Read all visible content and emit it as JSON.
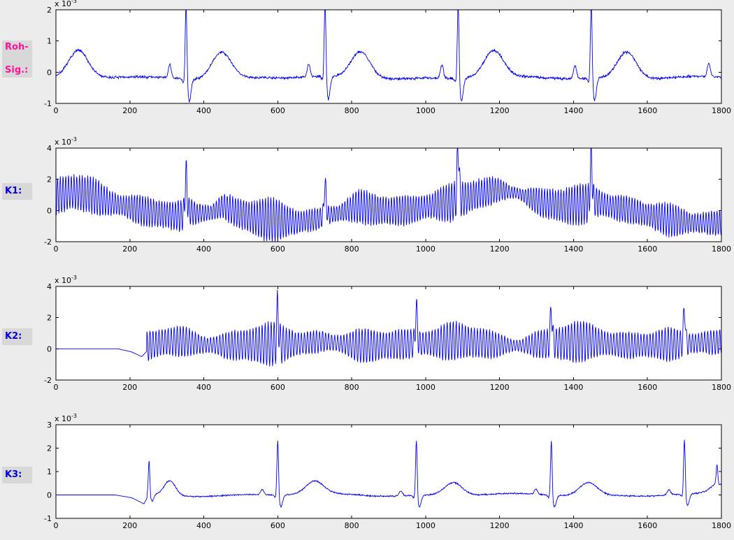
{
  "colors": {
    "figure_bg": "#ececec",
    "label_bg": "#d8d8d8",
    "axes_bg": "#ffffff",
    "axis_color": "#000000"
  },
  "chart_data": [
    {
      "id": "rohsig",
      "type": "line",
      "label_lines": [
        "Roh-",
        "Sig.:"
      ],
      "label_color": "#ff1493",
      "line_color": "#0000ee",
      "exp": {
        "base": "x 10",
        "power": "-3"
      },
      "xlim": [
        0,
        1800
      ],
      "ylim": [
        -1,
        2
      ],
      "xticks": [
        0,
        200,
        400,
        600,
        800,
        1000,
        1200,
        1400,
        1600,
        1800
      ],
      "yticks": [
        -1,
        0,
        1,
        2
      ],
      "signal": {
        "kind": "ecg",
        "seed": 7,
        "baseline": -0.18,
        "noise": 0.04,
        "wander": 0.03,
        "beats": [
          -35,
          352,
          728,
          1088,
          1448,
          1810
        ],
        "defaults": {
          "r": 2.45,
          "r_w": 2.3,
          "q": -0.12,
          "q_off": -7,
          "q_w": 3,
          "s": -0.72,
          "s_off": 9,
          "s_w": 4.5,
          "p": 0.42,
          "p_off": -44,
          "p_w": 4,
          "t": 0.85,
          "t_off": 96,
          "t_w": 26
        }
      }
    },
    {
      "id": "k1",
      "type": "line",
      "label_lines": [
        "K1:"
      ],
      "label_color": "#0000dd",
      "line_color": "#0000ee",
      "exp": {
        "base": "x 10",
        "power": "-3"
      },
      "xlim": [
        0,
        1800
      ],
      "ylim": [
        -2,
        4
      ],
      "xticks": [
        0,
        200,
        400,
        600,
        800,
        1000,
        1200,
        1400,
        1600,
        1800
      ],
      "yticks": [
        -2,
        0,
        2,
        4
      ],
      "signal": {
        "kind": "osc",
        "seed": 11,
        "noise": 0.09,
        "osc_amp": 0.9,
        "osc_period": 7.4,
        "spike_w": 2.6,
        "spikes": [
          [
            352,
            2.5
          ],
          [
            728,
            2.1
          ],
          [
            1088,
            3.5
          ],
          [
            1448,
            2.9
          ]
        ],
        "base_pts": [
          [
            0,
            0.9
          ],
          [
            40,
            1.2
          ],
          [
            90,
            1.05
          ],
          [
            140,
            0.55
          ],
          [
            190,
            0.25
          ],
          [
            240,
            -0.05
          ],
          [
            300,
            -0.3
          ],
          [
            340,
            -0.35
          ],
          [
            358,
            0.0
          ],
          [
            380,
            -0.2
          ],
          [
            420,
            -0.15
          ],
          [
            452,
            0.3
          ],
          [
            480,
            -0.05
          ],
          [
            530,
            -0.45
          ],
          [
            590,
            -0.6
          ],
          [
            650,
            -0.75
          ],
          [
            700,
            -0.6
          ],
          [
            735,
            -0.3
          ],
          [
            770,
            -0.15
          ],
          [
            822,
            0.3
          ],
          [
            860,
            0.05
          ],
          [
            910,
            -0.05
          ],
          [
            960,
            0.05
          ],
          [
            1020,
            0.3
          ],
          [
            1090,
            0.65
          ],
          [
            1150,
            1.1
          ],
          [
            1200,
            1.35
          ],
          [
            1255,
            1.05
          ],
          [
            1310,
            0.5
          ],
          [
            1370,
            0.3
          ],
          [
            1415,
            0.35
          ],
          [
            1455,
            0.6
          ],
          [
            1500,
            0.25
          ],
          [
            1550,
            0.05
          ],
          [
            1600,
            -0.3
          ],
          [
            1660,
            -0.6
          ],
          [
            1720,
            -0.8
          ],
          [
            1800,
            -0.8
          ]
        ]
      }
    },
    {
      "id": "k2",
      "type": "line",
      "label_lines": [
        "K2:"
      ],
      "label_color": "#0000dd",
      "line_color": "#0000ee",
      "exp": {
        "base": "x 10",
        "power": "-3"
      },
      "xlim": [
        0,
        1800
      ],
      "ylim": [
        -2,
        4
      ],
      "xticks": [
        0,
        200,
        400,
        600,
        800,
        1000,
        1200,
        1400,
        1600,
        1800
      ],
      "yticks": [
        -2,
        0,
        2,
        4
      ],
      "signal": {
        "kind": "osc",
        "seed": 23,
        "noise": 0.07,
        "flat_until": 168,
        "start": 246,
        "ramp": [
          [
            168,
            0
          ],
          [
            205,
            -0.2
          ],
          [
            232,
            -0.5
          ],
          [
            246,
            -0.15
          ]
        ],
        "osc_amp": 0.9,
        "osc_period": 8.2,
        "spike_w": 2.4,
        "spikes": [
          [
            600,
            2.35
          ],
          [
            975,
            2.3
          ],
          [
            1340,
            2.3
          ],
          [
            1700,
            2.4
          ]
        ],
        "base_pts": [
          [
            246,
            0.15
          ],
          [
            290,
            0.45
          ],
          [
            340,
            0.5
          ],
          [
            400,
            0.25
          ],
          [
            460,
            0.2
          ],
          [
            520,
            0.25
          ],
          [
            575,
            0.3
          ],
          [
            620,
            0.3
          ],
          [
            670,
            0.35
          ],
          [
            718,
            0.5
          ],
          [
            760,
            0.35
          ],
          [
            820,
            0.2
          ],
          [
            880,
            0.2
          ],
          [
            940,
            0.3
          ],
          [
            990,
            0.35
          ],
          [
            1040,
            0.4
          ],
          [
            1085,
            0.55
          ],
          [
            1130,
            0.4
          ],
          [
            1190,
            0.25
          ],
          [
            1250,
            0.2
          ],
          [
            1310,
            0.3
          ],
          [
            1360,
            0.35
          ],
          [
            1445,
            0.5
          ],
          [
            1500,
            0.3
          ],
          [
            1560,
            0.2
          ],
          [
            1620,
            0.25
          ],
          [
            1700,
            0.3
          ],
          [
            1750,
            0.4
          ],
          [
            1800,
            0.45
          ]
        ]
      }
    },
    {
      "id": "k3",
      "type": "line",
      "label_lines": [
        "K3:"
      ],
      "label_color": "#0000dd",
      "line_color": "#0000ee",
      "exp": {
        "base": "x 10",
        "power": "-3"
      },
      "xlim": [
        0,
        1800
      ],
      "ylim": [
        -1,
        3
      ],
      "xticks": [
        0,
        200,
        400,
        600,
        800,
        1000,
        1200,
        1400,
        1600,
        1800
      ],
      "yticks": [
        -1,
        0,
        1,
        2,
        3
      ],
      "signal": {
        "kind": "ecg",
        "seed": 31,
        "baseline": 0.0,
        "noise": 0.03,
        "wander": 0.04,
        "flat_until": 160,
        "start": 247,
        "ramp": [
          [
            160,
            0
          ],
          [
            205,
            -0.12
          ],
          [
            238,
            -0.38
          ],
          [
            247,
            -0.12
          ]
        ],
        "defaults": {
          "r": 2.45,
          "r_w": 2.2,
          "q": -0.1,
          "q_off": -7,
          "q_w": 3,
          "s": -0.5,
          "s_off": 8,
          "s_w": 5,
          "p": 0.22,
          "p_off": -42,
          "p_w": 4.5,
          "t": 0.55,
          "t_off": 100,
          "t_w": 24
        },
        "beats": [
          {
            "x": 252,
            "r": 1.5,
            "r_w": 2.0,
            "p": 0,
            "q": 0,
            "s": -0.3,
            "t": 0.62,
            "t_off": 56,
            "t_w": 15
          },
          {
            "x": 600
          },
          {
            "x": 975
          },
          {
            "x": 1340
          },
          {
            "x": 1700
          },
          {
            "x": 1788,
            "r": 0.8,
            "p": 0,
            "q": 0,
            "s": -0.15,
            "t": 0
          }
        ]
      }
    }
  ]
}
